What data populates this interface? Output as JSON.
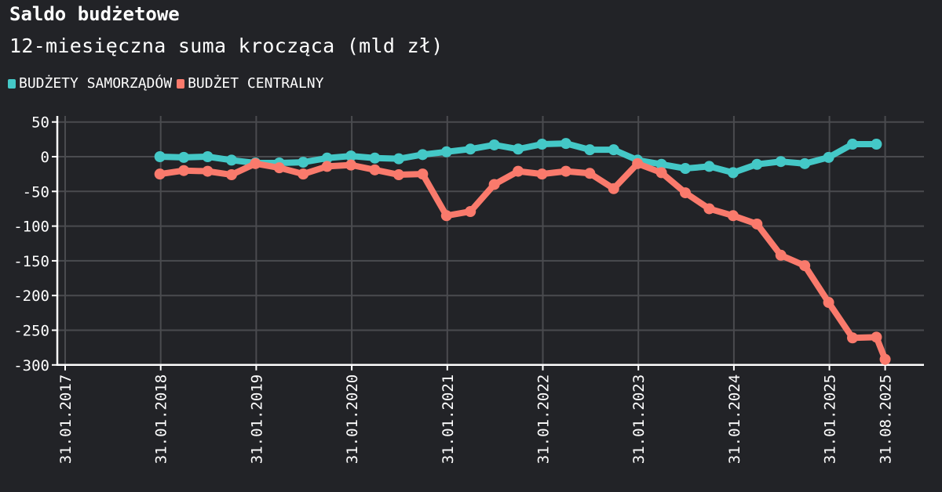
{
  "header": {
    "title": "Saldo budżetowe",
    "subtitle": "12-miesięczna suma krocząca (mld zł)"
  },
  "legend": [
    {
      "label": "BUDŻETY SAMORZĄDÓW",
      "color": "#44c8c7"
    },
    {
      "label": "BUDŻET CENTRALNY",
      "color": "#fa7a6c"
    }
  ],
  "chart_data": {
    "type": "line",
    "title": "Saldo budżetowe",
    "subtitle": "12-miesięczna suma krocząca (mld zł)",
    "xlabel": "",
    "ylabel": "",
    "ylim": [
      -300,
      50
    ],
    "yticks": [
      50,
      0,
      -50,
      -100,
      -150,
      -200,
      -250,
      -300
    ],
    "xtick_labels": [
      "31.01.2017",
      "31.01.2018",
      "31.01.2019",
      "31.01.2020",
      "31.01.2021",
      "31.01.2022",
      "31.01.2023",
      "31.01.2024",
      "31.01.2025",
      "31.08.2025"
    ],
    "grid": true,
    "legend_position": "top-left",
    "x": [
      "2017-12",
      "2018-03",
      "2018-06",
      "2018-09",
      "2018-12",
      "2019-03",
      "2019-06",
      "2019-09",
      "2019-12",
      "2020-03",
      "2020-06",
      "2020-09",
      "2020-12",
      "2021-03",
      "2021-06",
      "2021-09",
      "2021-12",
      "2022-03",
      "2022-06",
      "2022-09",
      "2022-12",
      "2023-03",
      "2023-06",
      "2023-09",
      "2023-12",
      "2024-03",
      "2024-06",
      "2024-09",
      "2024-12",
      "2025-03",
      "2025-06",
      "2025-08"
    ],
    "series": [
      {
        "name": "BUDŻETY SAMORZĄDÓW",
        "color": "#44c8c7",
        "values": [
          0,
          -1,
          0,
          -5,
          -9,
          -9,
          -8,
          -2,
          1,
          -2,
          -3,
          3,
          7,
          11,
          17,
          11,
          18,
          19,
          10,
          10,
          -5,
          -11,
          -17,
          -14,
          -23,
          -11,
          -7,
          -10,
          -1,
          18,
          18,
          null
        ]
      },
      {
        "name": "BUDŻET CENTRALNY",
        "color": "#fa7a6c",
        "values": [
          -25,
          -20,
          -21,
          -26,
          -10,
          -16,
          -25,
          -14,
          -12,
          -19,
          -26,
          -25,
          -85,
          -79,
          -40,
          -21,
          -25,
          -21,
          -24,
          -46,
          -10,
          -23,
          -52,
          -75,
          -85,
          -97,
          -142,
          -157,
          -210,
          -261,
          -260,
          -292
        ]
      }
    ]
  }
}
